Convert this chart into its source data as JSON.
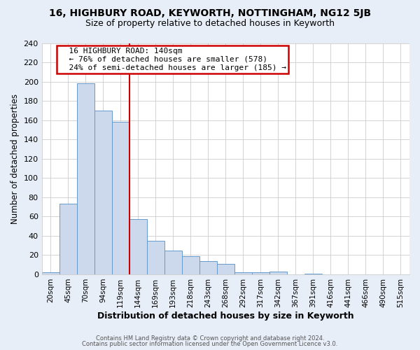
{
  "title": "16, HIGHBURY ROAD, KEYWORTH, NOTTINGHAM, NG12 5JB",
  "subtitle": "Size of property relative to detached houses in Keyworth",
  "xlabel": "Distribution of detached houses by size in Keyworth",
  "ylabel": "Number of detached properties",
  "bar_labels": [
    "20sqm",
    "45sqm",
    "70sqm",
    "94sqm",
    "119sqm",
    "144sqm",
    "169sqm",
    "193sqm",
    "218sqm",
    "243sqm",
    "268sqm",
    "292sqm",
    "317sqm",
    "342sqm",
    "367sqm",
    "391sqm",
    "416sqm",
    "441sqm",
    "466sqm",
    "490sqm",
    "515sqm"
  ],
  "bar_values": [
    2,
    73,
    198,
    170,
    158,
    57,
    35,
    25,
    19,
    14,
    11,
    2,
    2,
    3,
    0,
    1,
    0,
    0,
    0,
    0,
    0
  ],
  "bar_color": "#ccd9ec",
  "bar_edge_color": "#6699cc",
  "vline_color": "#cc0000",
  "annotation_title": "16 HIGHBURY ROAD: 140sqm",
  "annotation_line1": "← 76% of detached houses are smaller (578)",
  "annotation_line2": "24% of semi-detached houses are larger (185) →",
  "annotation_box_color": "white",
  "annotation_box_edge": "#cc0000",
  "ylim": [
    0,
    240
  ],
  "yticks": [
    0,
    20,
    40,
    60,
    80,
    100,
    120,
    140,
    160,
    180,
    200,
    220,
    240
  ],
  "footer1": "Contains HM Land Registry data © Crown copyright and database right 2024.",
  "footer2": "Contains public sector information licensed under the Open Government Licence v3.0.",
  "bg_color": "#e8eef8",
  "plot_bg_color": "#ffffff",
  "title_fontsize": 10,
  "subtitle_fontsize": 9
}
